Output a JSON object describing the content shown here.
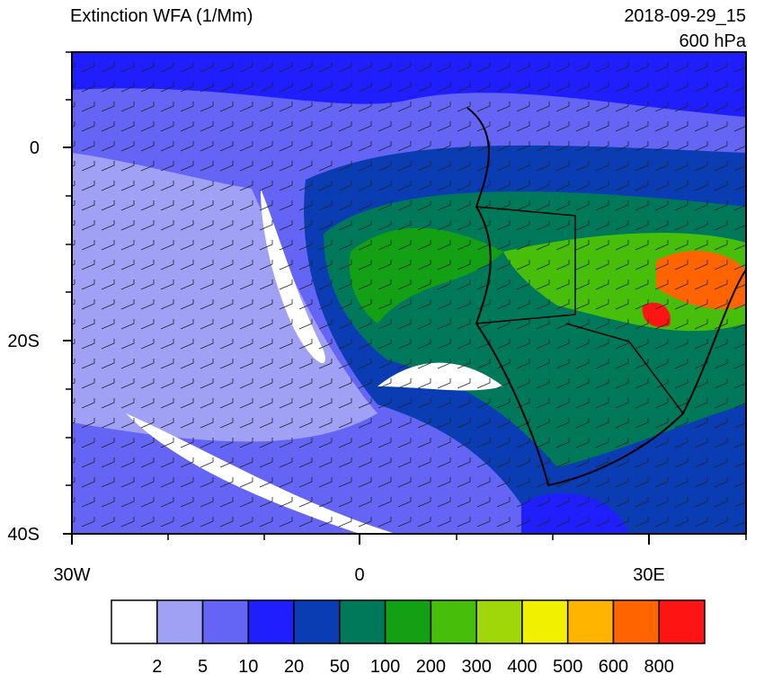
{
  "header": {
    "title": "Extinction WFA (1/Mm)",
    "time": "2018-09-29_15",
    "level": "600 hPa"
  },
  "map": {
    "lat_labels": [
      "0",
      "20S",
      "40S"
    ],
    "lon_labels": [
      "30W",
      "0",
      "30E"
    ]
  },
  "colorbar": {
    "colors": [
      "#ffffff",
      "#a0a0f5",
      "#6464f5",
      "#1e1eff",
      "#0a3cb4",
      "#00785a",
      "#14a014",
      "#46be0a",
      "#a0d70a",
      "#f0f000",
      "#ffb400",
      "#ff6400",
      "#ff1414"
    ],
    "levels": [
      2,
      5,
      10,
      20,
      50,
      100,
      200,
      300,
      400,
      500,
      600,
      800
    ]
  }
}
